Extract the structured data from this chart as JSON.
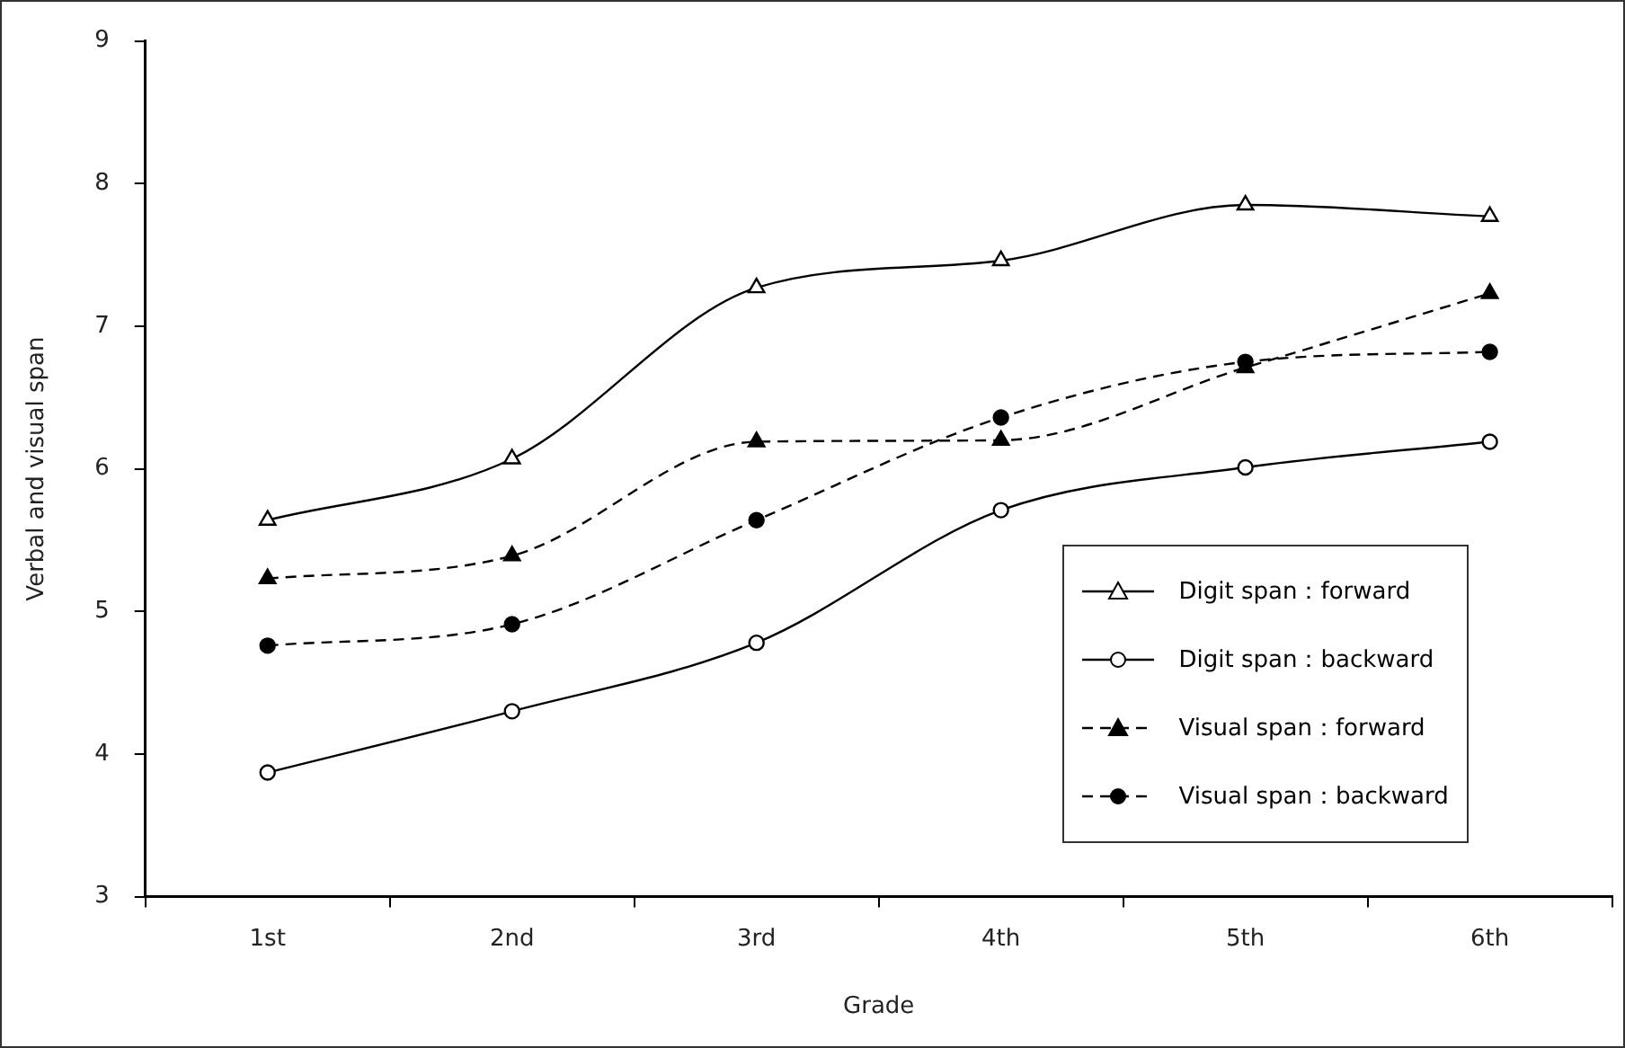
{
  "chart_data": {
    "type": "line",
    "xlabel": "Grade",
    "ylabel": "Verbal and visual span",
    "categories": [
      "1st",
      "2nd",
      "3rd",
      "4th",
      "5th",
      "6th"
    ],
    "series": [
      {
        "name": "Digit span：forward",
        "color": "#000000",
        "marker": "triangle",
        "line_style": "solid",
        "values": [
          5.64,
          6.07,
          7.27,
          7.46,
          7.85,
          7.77
        ]
      },
      {
        "name": "Digit span：backward",
        "color": "#000000",
        "marker": "circle",
        "line_style": "solid",
        "values": [
          3.87,
          4.3,
          4.78,
          5.71,
          6.01,
          6.19
        ]
      },
      {
        "name": "Visual span：forward",
        "color": "#000000",
        "marker": "triangle",
        "line_style": "dashed",
        "values": [
          5.23,
          5.39,
          6.19,
          6.2,
          6.71,
          7.23
        ]
      },
      {
        "name": "Visual span：backward",
        "color": "#000000",
        "marker": "circle",
        "line_style": "dashed",
        "values": [
          4.76,
          4.91,
          5.64,
          6.36,
          6.75,
          6.82
        ]
      }
    ],
    "ylim": [
      3,
      9
    ],
    "yticks": [
      3,
      4,
      5,
      6,
      7,
      8,
      9
    ],
    "grid": false,
    "legend": "bottom right"
  }
}
